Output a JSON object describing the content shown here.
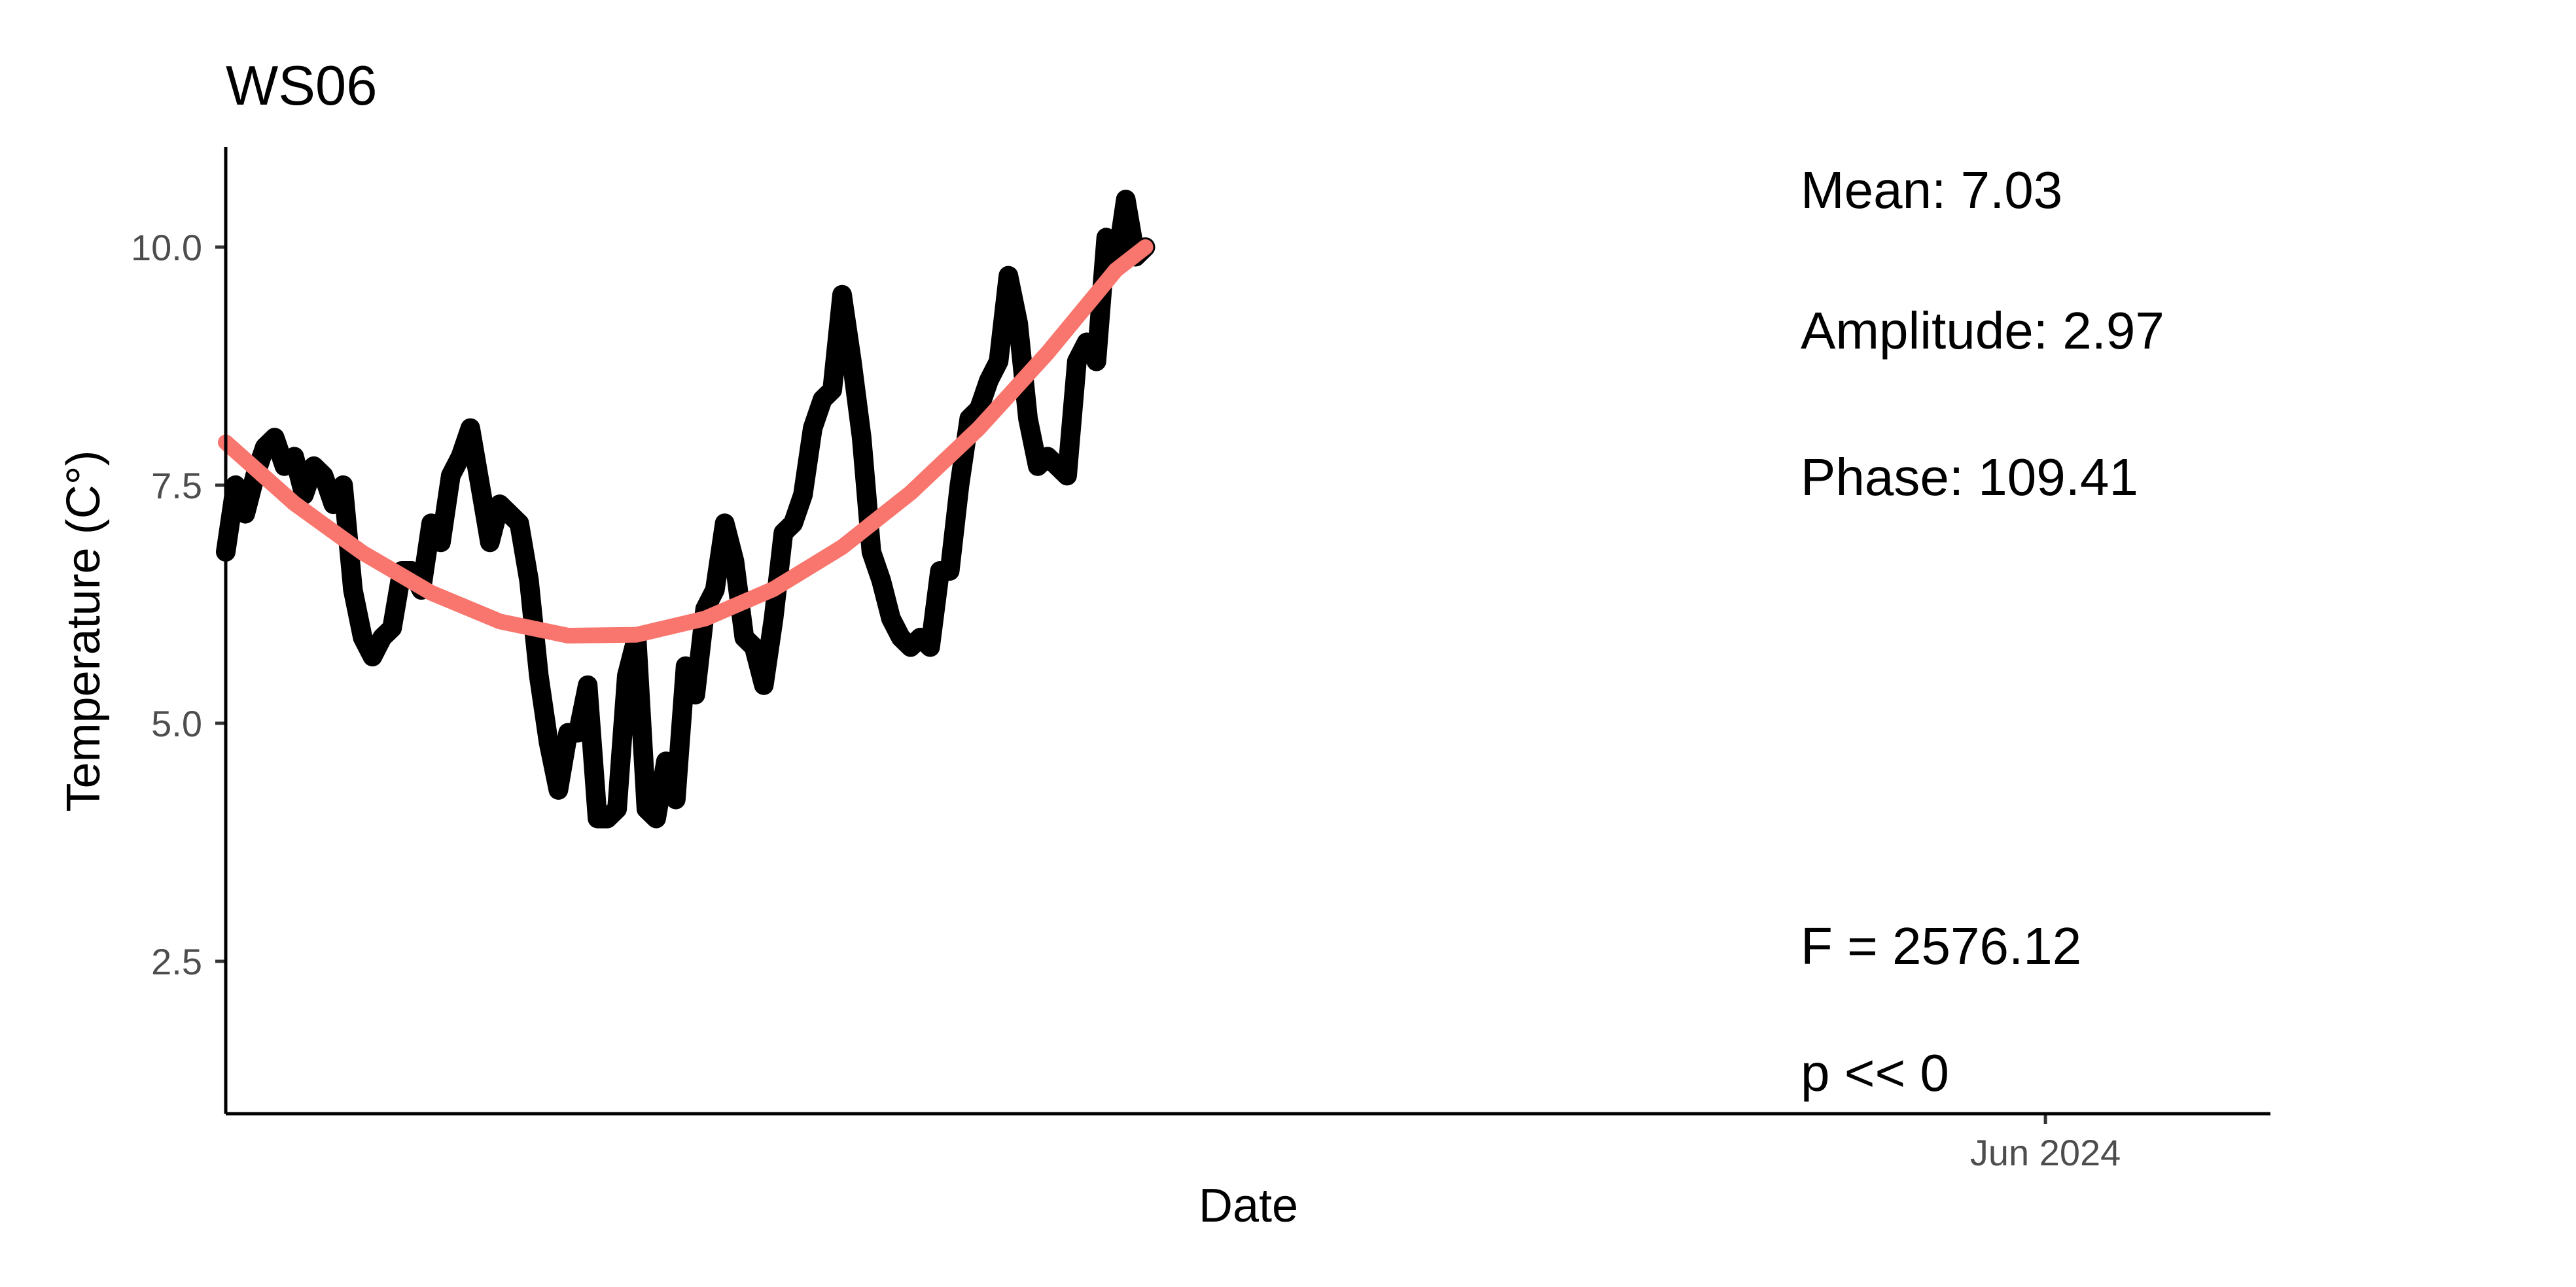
{
  "chart_data": {
    "type": "line",
    "title": "WS06",
    "xlabel": "Date",
    "ylabel": "Temperature (C°)",
    "x_ticks": [
      "Jun 2024"
    ],
    "y_ticks": [
      "2.5",
      "5.0",
      "7.5",
      "10.0"
    ],
    "y_tick_values": [
      2.5,
      5.0,
      7.5,
      10.0
    ],
    "ylim": [
      0.9,
      11.05
    ],
    "xlim": [
      "2023-11-28",
      "2024-06-24"
    ],
    "grid": false,
    "legend": "none",
    "series": [
      {
        "color": "#000000",
        "x": [
          "2023-11-28",
          "2023-11-29",
          "2023-11-30",
          "2023-12-01",
          "2023-12-02",
          "2023-12-03",
          "2023-12-04",
          "2023-12-05",
          "2023-12-06",
          "2023-12-07",
          "2023-12-08",
          "2023-12-09",
          "2023-12-10",
          "2023-12-11",
          "2023-12-12",
          "2023-12-13",
          "2023-12-14",
          "2023-12-15",
          "2023-12-16",
          "2023-12-17",
          "2023-12-18",
          "2023-12-19",
          "2023-12-20",
          "2023-12-21",
          "2023-12-22",
          "2023-12-23",
          "2023-12-24",
          "2023-12-25",
          "2023-12-26",
          "2023-12-27",
          "2023-12-28",
          "2023-12-29",
          "2023-12-30",
          "2023-12-31",
          "2024-01-01",
          "2024-01-02",
          "2024-01-03",
          "2024-01-04",
          "2024-01-05",
          "2024-01-06",
          "2024-01-07",
          "2024-01-08",
          "2024-01-09",
          "2024-01-10",
          "2024-01-11",
          "2024-01-12",
          "2024-01-13",
          "2024-01-14",
          "2024-01-15",
          "2024-01-16",
          "2024-01-17",
          "2024-01-18",
          "2024-01-19",
          "2024-01-20",
          "2024-01-21",
          "2024-01-22",
          "2024-01-23",
          "2024-01-24",
          "2024-01-25",
          "2024-01-26",
          "2024-01-27",
          "2024-01-28",
          "2024-01-29",
          "2024-01-30",
          "2024-01-31",
          "2024-02-01",
          "2024-02-02",
          "2024-02-03",
          "2024-02-04",
          "2024-02-05",
          "2024-02-06",
          "2024-02-07",
          "2024-02-08",
          "2024-02-09",
          "2024-02-10",
          "2024-02-11",
          "2024-02-12",
          "2024-02-13",
          "2024-02-14",
          "2024-02-15",
          "2024-02-16",
          "2024-02-17",
          "2024-02-18",
          "2024-02-19",
          "2024-02-20",
          "2024-02-21",
          "2024-02-22",
          "2024-02-23",
          "2024-02-24",
          "2024-02-25",
          "2024-02-26",
          "2024-02-27",
          "2024-02-28",
          "2024-02-29",
          "2024-03-01"
        ],
        "y": [
          6.8,
          7.5,
          7.2,
          7.6,
          7.9,
          8.0,
          7.7,
          7.8,
          7.4,
          7.7,
          7.6,
          7.3,
          7.5,
          6.4,
          5.9,
          5.7,
          5.9,
          6.0,
          6.6,
          6.6,
          6.4,
          7.1,
          6.9,
          7.6,
          7.8,
          8.1,
          7.5,
          6.9,
          7.3,
          7.2,
          7.1,
          6.5,
          5.5,
          4.8,
          4.3,
          4.9,
          4.9,
          5.4,
          4.0,
          4.0,
          4.1,
          5.5,
          5.9,
          4.1,
          4.0,
          4.6,
          4.2,
          5.6,
          5.3,
          6.2,
          6.4,
          7.1,
          6.7,
          5.9,
          5.8,
          5.4,
          6.1,
          7.0,
          7.1,
          7.4,
          8.1,
          8.4,
          8.5,
          9.5,
          8.8,
          8.0,
          6.8,
          6.5,
          6.1,
          5.9,
          5.8,
          5.9,
          5.8,
          6.6,
          6.6,
          7.5,
          8.2,
          8.3,
          8.6,
          8.8,
          9.7,
          9.2,
          8.2,
          7.7,
          7.8,
          7.7,
          7.6,
          8.8,
          9.0,
          8.8,
          10.1,
          9.8,
          10.5,
          9.9,
          10.0
        ]
      },
      {
        "color": "#F8766D",
        "x": [
          "2023-11-28",
          "2023-12-05",
          "2023-12-12",
          "2023-12-19",
          "2023-12-26",
          "2024-01-02",
          "2024-01-09",
          "2024-01-16",
          "2024-01-23",
          "2024-01-30",
          "2024-02-06",
          "2024-02-13",
          "2024-02-20",
          "2024-02-27",
          "2024-03-01"
        ],
        "y": [
          7.95,
          7.31,
          6.79,
          6.37,
          6.07,
          5.92,
          5.93,
          6.1,
          6.41,
          6.85,
          7.42,
          8.1,
          8.89,
          9.76,
          10.0
        ]
      }
    ],
    "annotations": [
      "Mean: 7.03",
      "Amplitude: 2.97",
      "Phase: 109.41",
      "F =  2576.12",
      "p <<  0"
    ]
  }
}
